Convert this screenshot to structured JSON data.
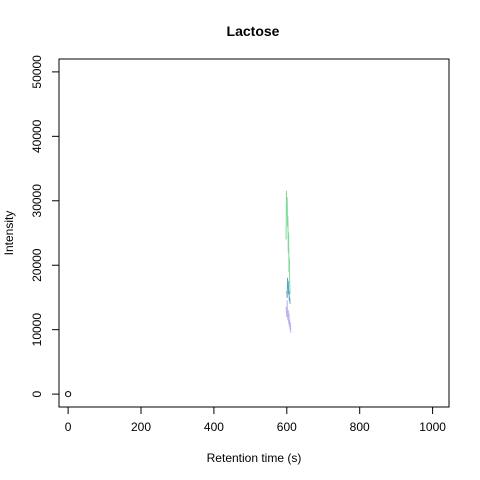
{
  "chart_data": {
    "type": "line",
    "title": "Lactose",
    "xlabel": "Retention time (s)",
    "ylabel": "Intensity",
    "xlim": [
      -25,
      1045
    ],
    "ylim": [
      -2000,
      52000
    ],
    "x_ticks": [
      0,
      200,
      400,
      600,
      800,
      1000
    ],
    "y_ticks": [
      0,
      10000,
      20000,
      30000,
      40000,
      50000
    ],
    "x_tick_labels": [
      "0",
      "200",
      "400",
      "600",
      "800",
      "1000"
    ],
    "y_tick_labels": [
      "0",
      "10000",
      "20000",
      "30000",
      "40000",
      "50000"
    ],
    "grid": false,
    "legend": "none",
    "points": [
      {
        "x": 0,
        "y": 0,
        "style": "open-circle"
      }
    ],
    "series": [
      {
        "color": "#7fd99a",
        "x": [
          598,
          599,
          600,
          601,
          602,
          603,
          604,
          605,
          606,
          607,
          608,
          609
        ],
        "y": [
          24000,
          31500,
          28000,
          30500,
          26000,
          27500,
          22000,
          25000,
          19000,
          21000,
          17000,
          15500
        ]
      },
      {
        "color": "#5aa0c8",
        "x": [
          600,
          601,
          602,
          603,
          604,
          605,
          606,
          607,
          608,
          609
        ],
        "y": [
          16000,
          15000,
          18000,
          16500,
          17500,
          15500,
          16000,
          14500,
          15000,
          14000
        ]
      },
      {
        "color": "#b8b8ee",
        "x": [
          598,
          600,
          601,
          602,
          603,
          604,
          605,
          606,
          607,
          608,
          609,
          610,
          611
        ],
        "y": [
          13500,
          12000,
          14500,
          12500,
          11500,
          13000,
          11000,
          12500,
          10500,
          11500,
          10000,
          11000,
          9500
        ]
      }
    ]
  }
}
